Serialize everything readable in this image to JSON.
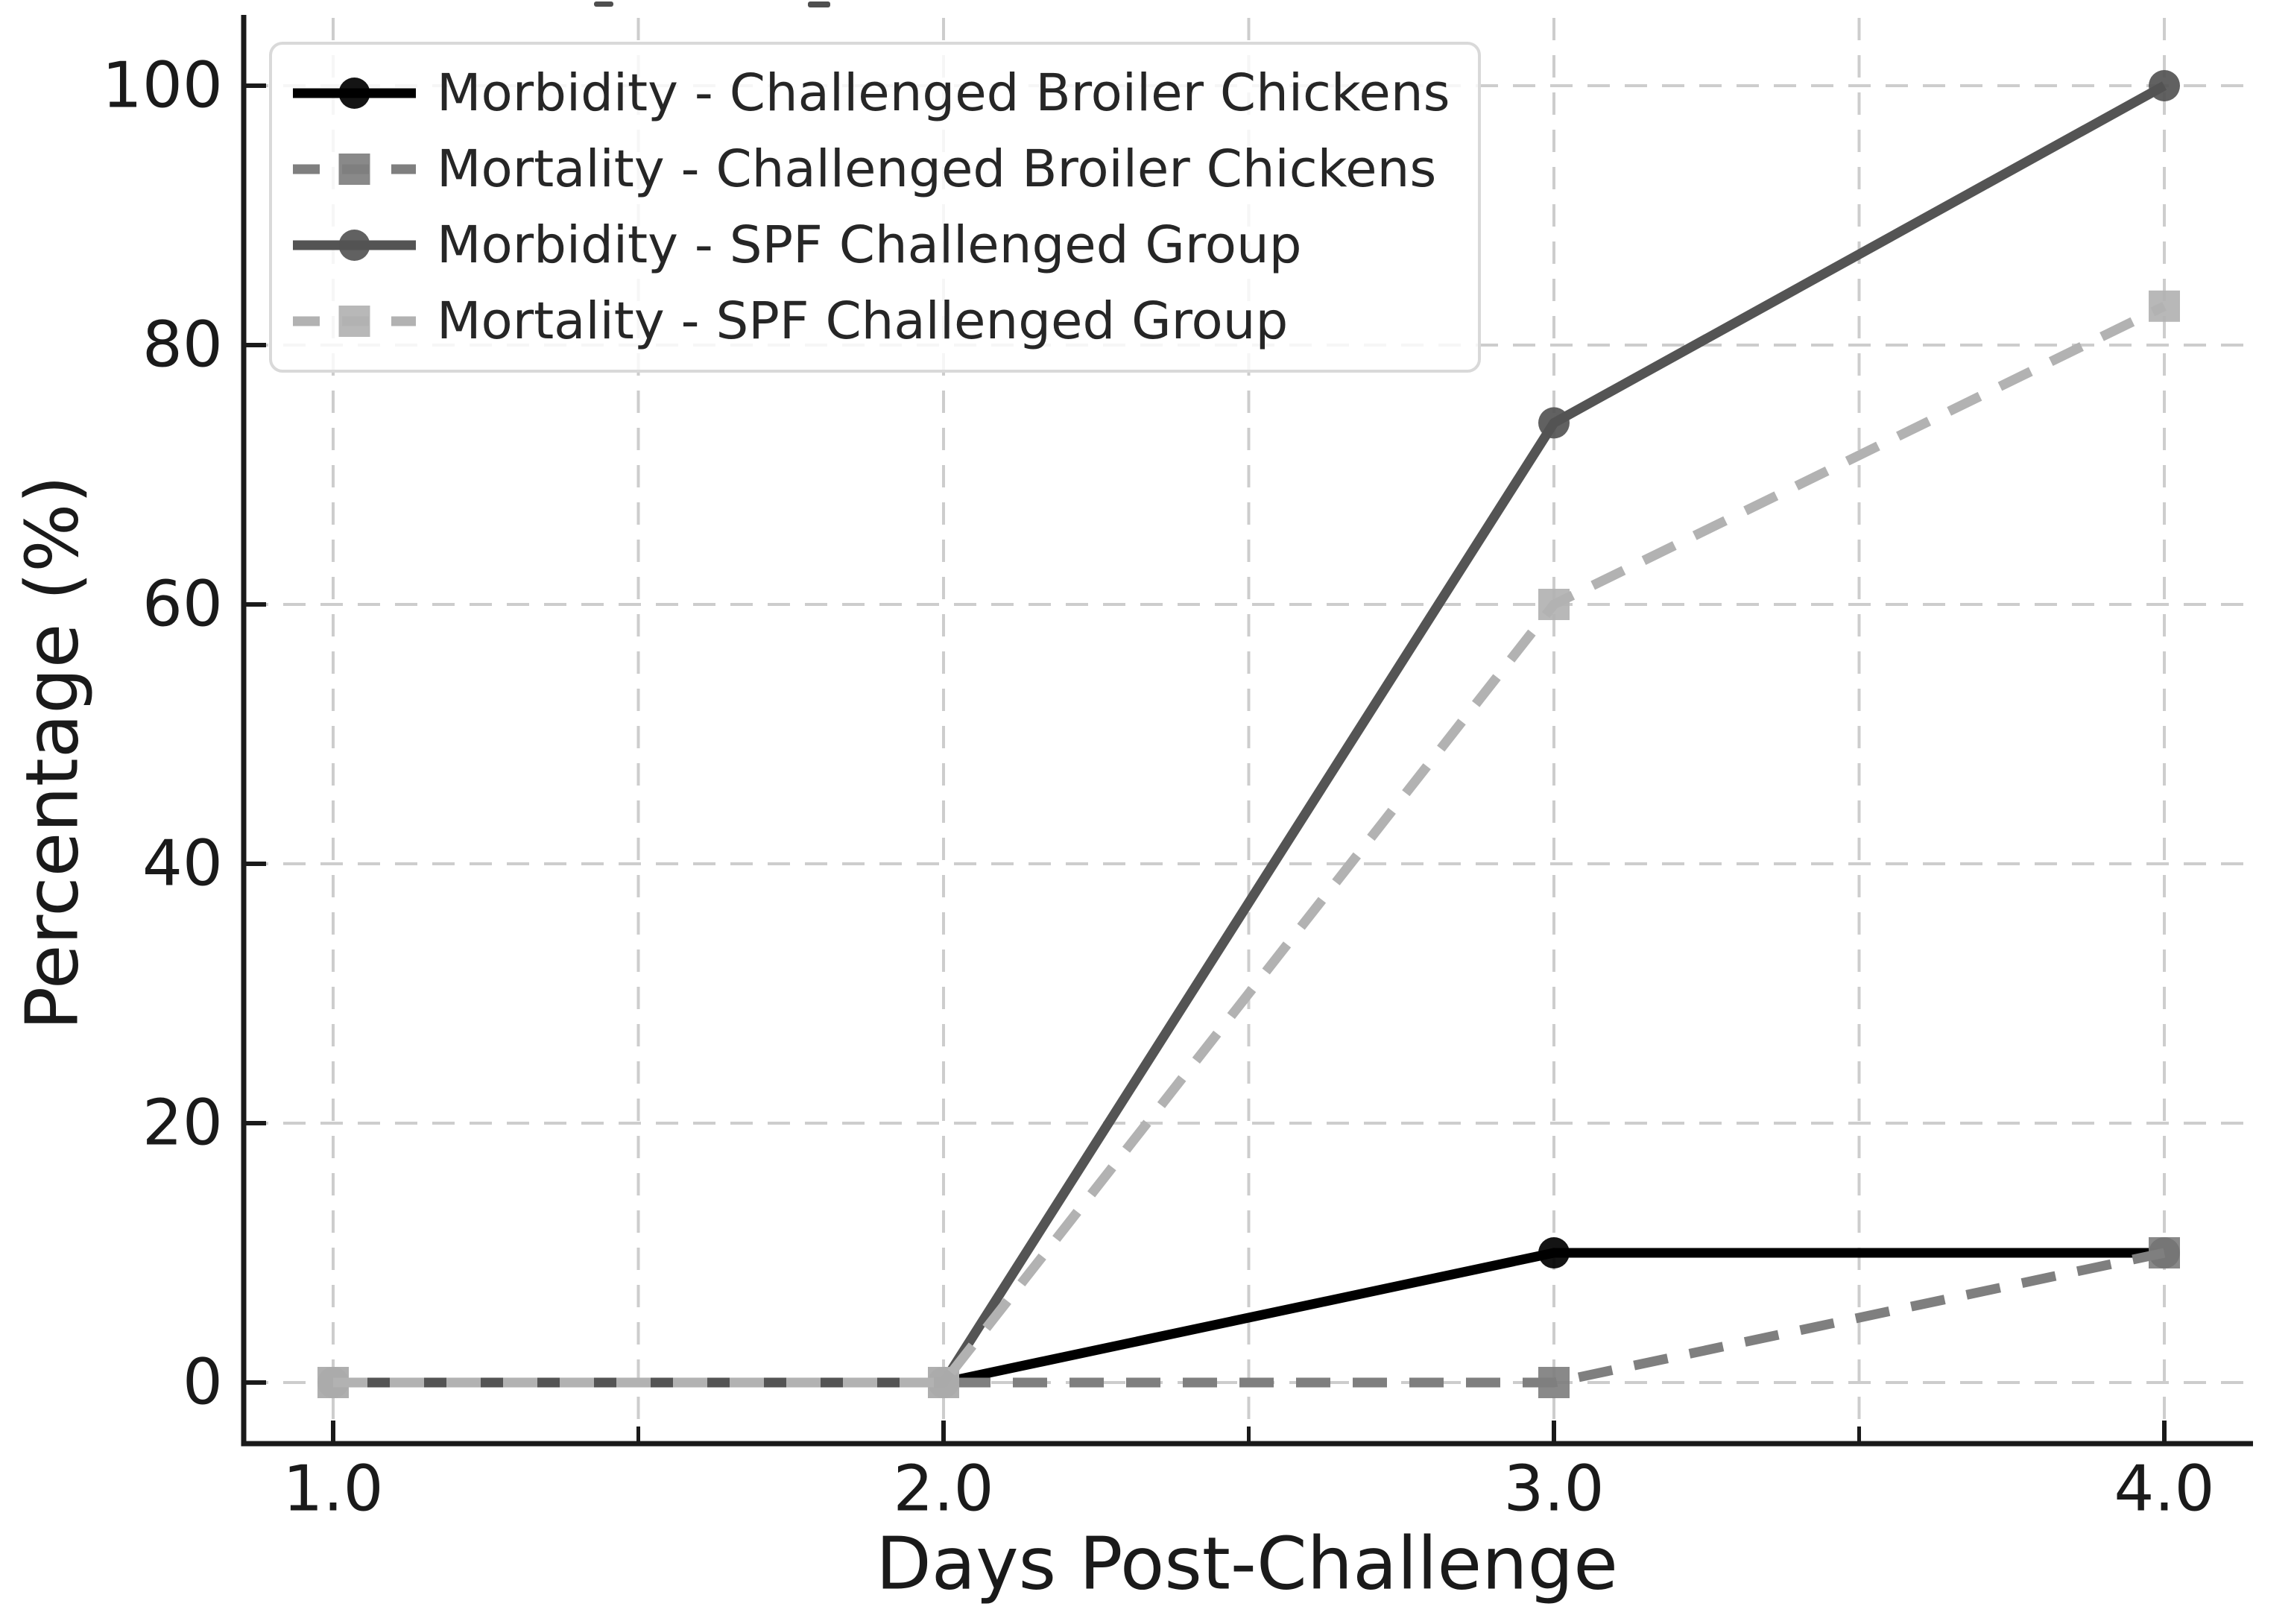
{
  "chart_data": {
    "type": "line",
    "title": "",
    "xlabel": "Days Post-Challenge",
    "ylabel": "Percentage (%)",
    "x": [
      1.0,
      2.0,
      3.0,
      4.0
    ],
    "x_tick_labels": [
      "1.0",
      "2.0",
      "3.0",
      "4.0"
    ],
    "x_minor_ticks": [
      1.5,
      2.5,
      3.5
    ],
    "y_ticks": [
      0,
      20,
      40,
      60,
      80,
      100
    ],
    "y_tick_labels": [
      "0",
      "20",
      "40",
      "60",
      "80",
      "100"
    ],
    "xlim": [
      0.85,
      4.15
    ],
    "ylim": [
      -5,
      105
    ],
    "grid": true,
    "grid_style": "dashed",
    "legend_position": "upper left",
    "series": [
      {
        "name": "Morbidity - Challenged Broiler Chickens",
        "values": [
          0,
          0,
          10,
          10
        ],
        "color": "#000000",
        "line_style": "solid",
        "marker": "circle"
      },
      {
        "name": "Mortality - Challenged Broiler Chickens",
        "values": [
          0,
          0,
          0,
          10
        ],
        "color": "#7f7f7f",
        "line_style": "dashed",
        "marker": "square"
      },
      {
        "name": "Morbidity - SPF Challenged Group",
        "values": [
          0,
          0,
          74,
          100
        ],
        "color": "#545454",
        "line_style": "solid",
        "marker": "circle"
      },
      {
        "name": "Mortality - SPF Challenged Group",
        "values": [
          0,
          0,
          60,
          83
        ],
        "color": "#b2b2b2",
        "line_style": "dashed",
        "marker": "square"
      }
    ],
    "colors": {
      "background": "#ffffff",
      "grid": "#cdcdcd",
      "spine": "#1a1a1a",
      "tick_text": "#1a1a1a",
      "legend_border": "#d9d9d9",
      "legend_text": "#262626"
    }
  }
}
